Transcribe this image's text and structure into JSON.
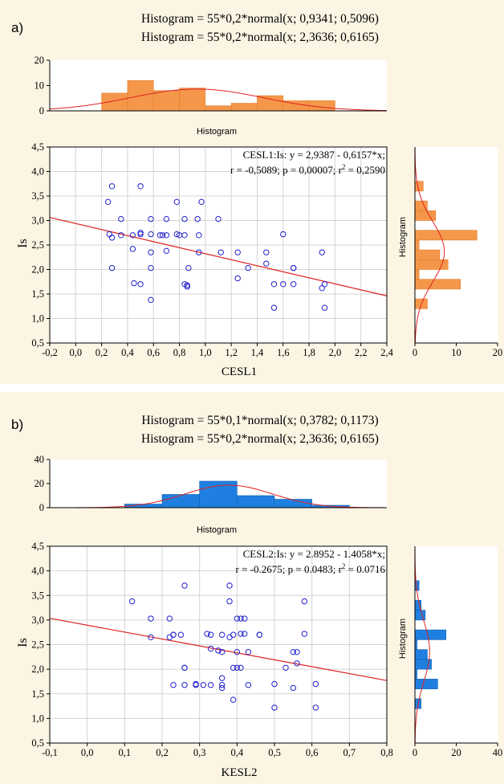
{
  "panels": [
    {
      "label": "a)",
      "title_line1": "Histogram = 55*0,2*normal(x; 0,9341; 0,5096)",
      "title_line2": "Histogram = 55*0,2*normal(x; 2,3636; 0,6165)",
      "top_hist_label": "Histogram",
      "side_hist_label": "Histogram",
      "xlabel": "CESL1",
      "ylabel": "Is",
      "eq_line1": "CESL1:Is:   y = 2,9387 - 0,6157*x;",
      "eq_line2": "r = -0,5089; p = 0,00007; r",
      "eq_sup": "2",
      "eq_line2_end": " = 0,2590",
      "colors": {
        "bar": "#f5974a",
        "bar_edge": "#e07a2a",
        "point": "#2222cc",
        "fit": "#dd2222",
        "bg": "#fdf5e4"
      }
    },
    {
      "label": "b)",
      "title_line1": "Histogram = 55*0,1*normal(x; 0,3782; 0,1173)",
      "title_line2": "Histogram = 55*0,2*normal(x; 2,3636; 0,6165)",
      "top_hist_label": "Histogram",
      "side_hist_label": "Histogram",
      "xlabel": "KESL2",
      "ylabel": "Is",
      "eq_line1": "CESL2:Is:   y = 2.8952 - 1.4058*x;",
      "eq_line2": "r = -0.2675; p = 0.0483; r",
      "eq_sup": "2",
      "eq_line2_end": " = 0.0716",
      "colors": {
        "bar": "#1f7fe0",
        "bar_edge": "#0f5fb0",
        "point": "#2222cc",
        "fit": "#dd2222",
        "bg": "#fdf5e4"
      }
    }
  ],
  "chart_data": [
    {
      "type": "scatter",
      "x_ticks": [
        "-0,2",
        "0,0",
        "0,2",
        "0,4",
        "0,6",
        "0,8",
        "1,0",
        "1,2",
        "1,4",
        "1,6",
        "1,8",
        "2,0",
        "2,2",
        "2,4"
      ],
      "x_tick_values": [
        -0.2,
        0,
        0.2,
        0.4,
        0.6,
        0.8,
        1.0,
        1.2,
        1.4,
        1.6,
        1.8,
        2.0,
        2.2,
        2.4
      ],
      "y_ticks": [
        "0,5",
        "1,0",
        "1,5",
        "2,0",
        "2,5",
        "3,0",
        "3,5",
        "4,0",
        "4,5"
      ],
      "y_tick_values": [
        0.5,
        1.0,
        1.5,
        2.0,
        2.5,
        3.0,
        3.5,
        4.0,
        4.5
      ],
      "xlim": [
        -0.2,
        2.4
      ],
      "ylim": [
        0.5,
        4.5
      ],
      "fit": {
        "intercept": 2.9387,
        "slope": -0.6157
      },
      "points": [
        [
          0.25,
          3.38
        ],
        [
          0.28,
          3.7
        ],
        [
          0.28,
          2.65
        ],
        [
          0.26,
          2.72
        ],
        [
          0.28,
          2.03
        ],
        [
          0.35,
          3.03
        ],
        [
          0.35,
          2.7
        ],
        [
          0.44,
          2.7
        ],
        [
          0.44,
          2.42
        ],
        [
          0.45,
          1.72
        ],
        [
          0.5,
          3.7
        ],
        [
          0.5,
          2.72
        ],
        [
          0.5,
          2.75
        ],
        [
          0.5,
          1.7
        ],
        [
          0.58,
          3.03
        ],
        [
          0.58,
          2.72
        ],
        [
          0.58,
          2.35
        ],
        [
          0.58,
          2.03
        ],
        [
          0.58,
          1.38
        ],
        [
          0.65,
          2.7
        ],
        [
          0.67,
          2.7
        ],
        [
          0.7,
          3.03
        ],
        [
          0.7,
          2.7
        ],
        [
          0.7,
          2.38
        ],
        [
          0.78,
          3.38
        ],
        [
          0.78,
          2.72
        ],
        [
          0.8,
          2.7
        ],
        [
          0.84,
          3.03
        ],
        [
          0.84,
          2.7
        ],
        [
          0.84,
          1.7
        ],
        [
          0.86,
          1.68
        ],
        [
          0.86,
          1.65
        ],
        [
          0.87,
          2.03
        ],
        [
          0.94,
          3.03
        ],
        [
          0.95,
          2.7
        ],
        [
          0.95,
          2.35
        ],
        [
          0.97,
          3.38
        ],
        [
          1.1,
          3.03
        ],
        [
          1.12,
          2.35
        ],
        [
          1.25,
          2.35
        ],
        [
          1.25,
          1.82
        ],
        [
          1.33,
          2.03
        ],
        [
          1.47,
          2.35
        ],
        [
          1.47,
          2.12
        ],
        [
          1.53,
          1.7
        ],
        [
          1.53,
          1.22
        ],
        [
          1.6,
          2.72
        ],
        [
          1.6,
          1.7
        ],
        [
          1.68,
          2.03
        ],
        [
          1.68,
          2.03
        ],
        [
          1.68,
          1.7
        ],
        [
          1.9,
          2.35
        ],
        [
          1.9,
          1.62
        ],
        [
          1.92,
          1.7
        ],
        [
          1.92,
          1.22
        ]
      ],
      "top_hist": {
        "y_ticks": [
          "0",
          "10",
          "20"
        ],
        "y_tick_values": [
          0,
          10,
          20
        ],
        "ylim": [
          0,
          20
        ],
        "bin_width": 0.2,
        "bins": [
          [
            0.2,
            7
          ],
          [
            0.4,
            12
          ],
          [
            0.6,
            8
          ],
          [
            0.8,
            9
          ],
          [
            1.0,
            2
          ],
          [
            1.2,
            3
          ],
          [
            1.4,
            6
          ],
          [
            1.6,
            4
          ],
          [
            1.8,
            4
          ]
        ],
        "normal": {
          "n": 55,
          "w": 0.2,
          "mean": 0.9341,
          "sd": 0.5096
        }
      },
      "side_hist": {
        "x_ticks": [
          "0",
          "10",
          "20"
        ],
        "x_tick_values": [
          0,
          10,
          20
        ],
        "xlim": [
          0,
          20
        ],
        "bin_width": 0.2,
        "bins": [
          [
            1.2,
            3
          ],
          [
            1.6,
            11
          ],
          [
            1.8,
            1
          ],
          [
            2.0,
            8
          ],
          [
            2.2,
            6
          ],
          [
            2.4,
            1
          ],
          [
            2.6,
            15
          ],
          [
            3.0,
            5
          ],
          [
            3.2,
            3
          ],
          [
            3.6,
            2
          ]
        ],
        "normal": {
          "n": 55,
          "w": 0.2,
          "mean": 2.3636,
          "sd": 0.6165
        }
      }
    },
    {
      "type": "scatter",
      "x_ticks": [
        "-0,1",
        "0,0",
        "0,1",
        "0,2",
        "0,3",
        "0,4",
        "0,5",
        "0,6",
        "0,7",
        "0,8"
      ],
      "x_tick_values": [
        -0.1,
        0,
        0.1,
        0.2,
        0.3,
        0.4,
        0.5,
        0.6,
        0.7,
        0.8
      ],
      "y_ticks": [
        "0,5",
        "1,0",
        "1,5",
        "2,0",
        "2,5",
        "3,0",
        "3,5",
        "4,0",
        "4,5"
      ],
      "y_tick_values": [
        0.5,
        1.0,
        1.5,
        2.0,
        2.5,
        3.0,
        3.5,
        4.0,
        4.5
      ],
      "xlim": [
        -0.1,
        0.8
      ],
      "ylim": [
        0.5,
        4.5
      ],
      "fit": {
        "intercept": 2.8952,
        "slope": -1.4058
      },
      "points": [
        [
          0.12,
          3.38
        ],
        [
          0.17,
          3.03
        ],
        [
          0.17,
          2.65
        ],
        [
          0.22,
          3.03
        ],
        [
          0.22,
          2.65
        ],
        [
          0.23,
          2.7
        ],
        [
          0.23,
          2.7
        ],
        [
          0.23,
          1.68
        ],
        [
          0.26,
          3.7
        ],
        [
          0.26,
          2.03
        ],
        [
          0.26,
          2.03
        ],
        [
          0.26,
          1.68
        ],
        [
          0.29,
          1.68
        ],
        [
          0.29,
          1.7
        ],
        [
          0.32,
          2.72
        ],
        [
          0.33,
          2.7
        ],
        [
          0.33,
          2.42
        ],
        [
          0.33,
          1.68
        ],
        [
          0.35,
          2.38
        ],
        [
          0.36,
          2.7
        ],
        [
          0.36,
          2.35
        ],
        [
          0.36,
          1.82
        ],
        [
          0.36,
          1.68
        ],
        [
          0.36,
          1.62
        ],
        [
          0.38,
          3.7
        ],
        [
          0.38,
          3.38
        ],
        [
          0.38,
          2.65
        ],
        [
          0.39,
          2.7
        ],
        [
          0.39,
          2.03
        ],
        [
          0.39,
          1.38
        ],
        [
          0.4,
          3.03
        ],
        [
          0.4,
          2.35
        ],
        [
          0.4,
          2.03
        ],
        [
          0.41,
          3.03
        ],
        [
          0.41,
          2.72
        ],
        [
          0.41,
          2.03
        ],
        [
          0.42,
          3.03
        ],
        [
          0.42,
          2.72
        ],
        [
          0.43,
          2.35
        ],
        [
          0.43,
          1.68
        ],
        [
          0.46,
          2.7
        ],
        [
          0.5,
          1.7
        ],
        [
          0.5,
          1.22
        ],
        [
          0.53,
          2.03
        ],
        [
          0.55,
          2.35
        ],
        [
          0.55,
          1.62
        ],
        [
          0.56,
          2.35
        ],
        [
          0.56,
          2.12
        ],
        [
          0.58,
          3.38
        ],
        [
          0.58,
          2.72
        ],
        [
          0.61,
          1.7
        ],
        [
          0.61,
          1.22
        ],
        [
          0.25,
          2.7
        ],
        [
          0.31,
          1.68
        ],
        [
          0.46,
          2.7
        ]
      ],
      "top_hist": {
        "y_ticks": [
          "0",
          "20",
          "40"
        ],
        "y_tick_values": [
          0,
          20,
          40
        ],
        "ylim": [
          0,
          40
        ],
        "bin_width": 0.1,
        "bins": [
          [
            0.1,
            3
          ],
          [
            0.2,
            11
          ],
          [
            0.3,
            22
          ],
          [
            0.4,
            10
          ],
          [
            0.5,
            7
          ],
          [
            0.6,
            2
          ]
        ],
        "normal": {
          "n": 55,
          "w": 0.1,
          "mean": 0.3782,
          "sd": 0.1173
        }
      },
      "side_hist": {
        "x_ticks": [
          "0",
          "20",
          "40"
        ],
        "x_tick_values": [
          0,
          20,
          40
        ],
        "xlim": [
          0,
          40
        ],
        "bin_width": 0.2,
        "bins": [
          [
            1.2,
            3
          ],
          [
            1.6,
            11
          ],
          [
            1.8,
            1
          ],
          [
            2.0,
            8
          ],
          [
            2.2,
            6
          ],
          [
            2.4,
            1
          ],
          [
            2.6,
            15
          ],
          [
            3.0,
            5
          ],
          [
            3.2,
            3
          ],
          [
            3.6,
            2
          ]
        ],
        "normal": {
          "n": 55,
          "w": 0.2,
          "mean": 2.3636,
          "sd": 0.6165
        }
      }
    }
  ]
}
